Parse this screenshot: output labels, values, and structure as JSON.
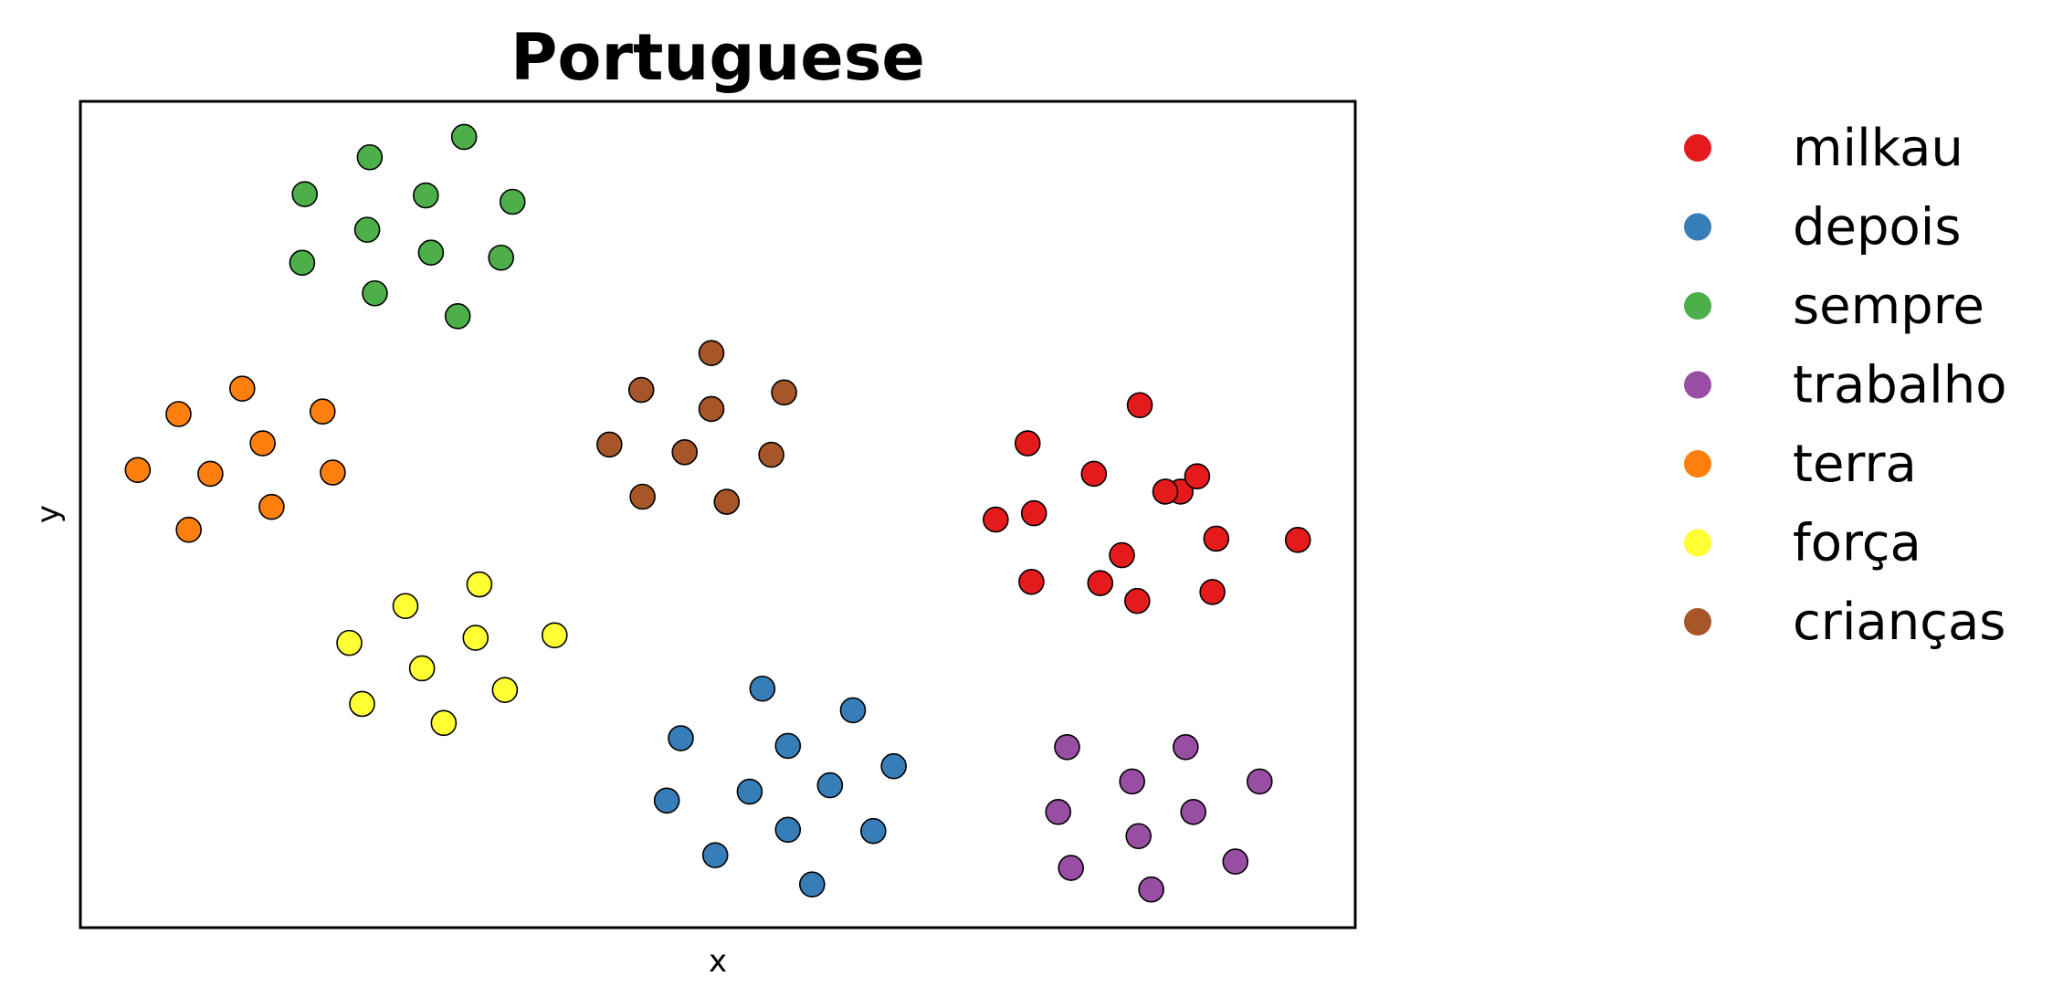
{
  "chart_data": {
    "type": "scatter",
    "title": "Portuguese",
    "xlabel": "x",
    "ylabel": "y",
    "xlim": [
      0,
      1000
    ],
    "ylim": [
      0,
      650
    ],
    "xticks": [],
    "yticks": [],
    "grid": false,
    "legend_position": "outside-right",
    "series": [
      {
        "name": "milkau",
        "color": "#e41a1c",
        "points": [
          [
            831,
            411
          ],
          [
            743,
            381
          ],
          [
            795,
            357
          ],
          [
            863,
            343
          ],
          [
            876,
            355
          ],
          [
            851,
            343
          ],
          [
            748,
            326
          ],
          [
            891,
            306
          ],
          [
            817,
            293
          ],
          [
            800,
            271
          ],
          [
            746,
            272
          ],
          [
            718,
            321
          ],
          [
            829,
            257
          ],
          [
            888,
            264
          ],
          [
            955,
            305
          ]
        ]
      },
      {
        "name": "depois",
        "color": "#377eb8",
        "points": [
          [
            535,
            188
          ],
          [
            606,
            171
          ],
          [
            471,
            149
          ],
          [
            555,
            143
          ],
          [
            638,
            127
          ],
          [
            525,
            107
          ],
          [
            588,
            112
          ],
          [
            460,
            100
          ],
          [
            555,
            77
          ],
          [
            622,
            76
          ],
          [
            498,
            57
          ],
          [
            574,
            34
          ]
        ]
      },
      {
        "name": "sempre",
        "color": "#4daf4a",
        "points": [
          [
            301,
            622
          ],
          [
            227,
            606
          ],
          [
            176,
            577
          ],
          [
            271,
            576
          ],
          [
            339,
            571
          ],
          [
            225,
            549
          ],
          [
            275,
            531
          ],
          [
            330,
            527
          ],
          [
            174,
            523
          ],
          [
            231,
            499
          ],
          [
            296,
            481
          ]
        ]
      },
      {
        "name": "trabalho",
        "color": "#984ea3",
        "points": [
          [
            774,
            142
          ],
          [
            867,
            142
          ],
          [
            825,
            115
          ],
          [
            925,
            115
          ],
          [
            767,
            91
          ],
          [
            873,
            91
          ],
          [
            830,
            72
          ],
          [
            906,
            52
          ],
          [
            777,
            47
          ],
          [
            840,
            30
          ]
        ]
      },
      {
        "name": "terra",
        "color": "#ff7f0e",
        "points": [
          [
            127,
            424
          ],
          [
            77,
            404
          ],
          [
            190,
            406
          ],
          [
            143,
            381
          ],
          [
            45,
            360
          ],
          [
            102,
            357
          ],
          [
            198,
            358
          ],
          [
            150,
            331
          ],
          [
            85,
            313
          ]
        ]
      },
      {
        "name": "força",
        "color": "#ffff33",
        "points": [
          [
            313,
            270
          ],
          [
            255,
            253
          ],
          [
            372,
            230
          ],
          [
            310,
            228
          ],
          [
            211,
            224
          ],
          [
            268,
            204
          ],
          [
            333,
            187
          ],
          [
            221,
            176
          ],
          [
            285,
            161
          ]
        ]
      },
      {
        "name": "crianças",
        "color": "#a65628",
        "points": [
          [
            495,
            452
          ],
          [
            440,
            423
          ],
          [
            552,
            421
          ],
          [
            495,
            408
          ],
          [
            415,
            380
          ],
          [
            474,
            374
          ],
          [
            542,
            372
          ],
          [
            441,
            339
          ],
          [
            507,
            335
          ]
        ]
      }
    ]
  }
}
